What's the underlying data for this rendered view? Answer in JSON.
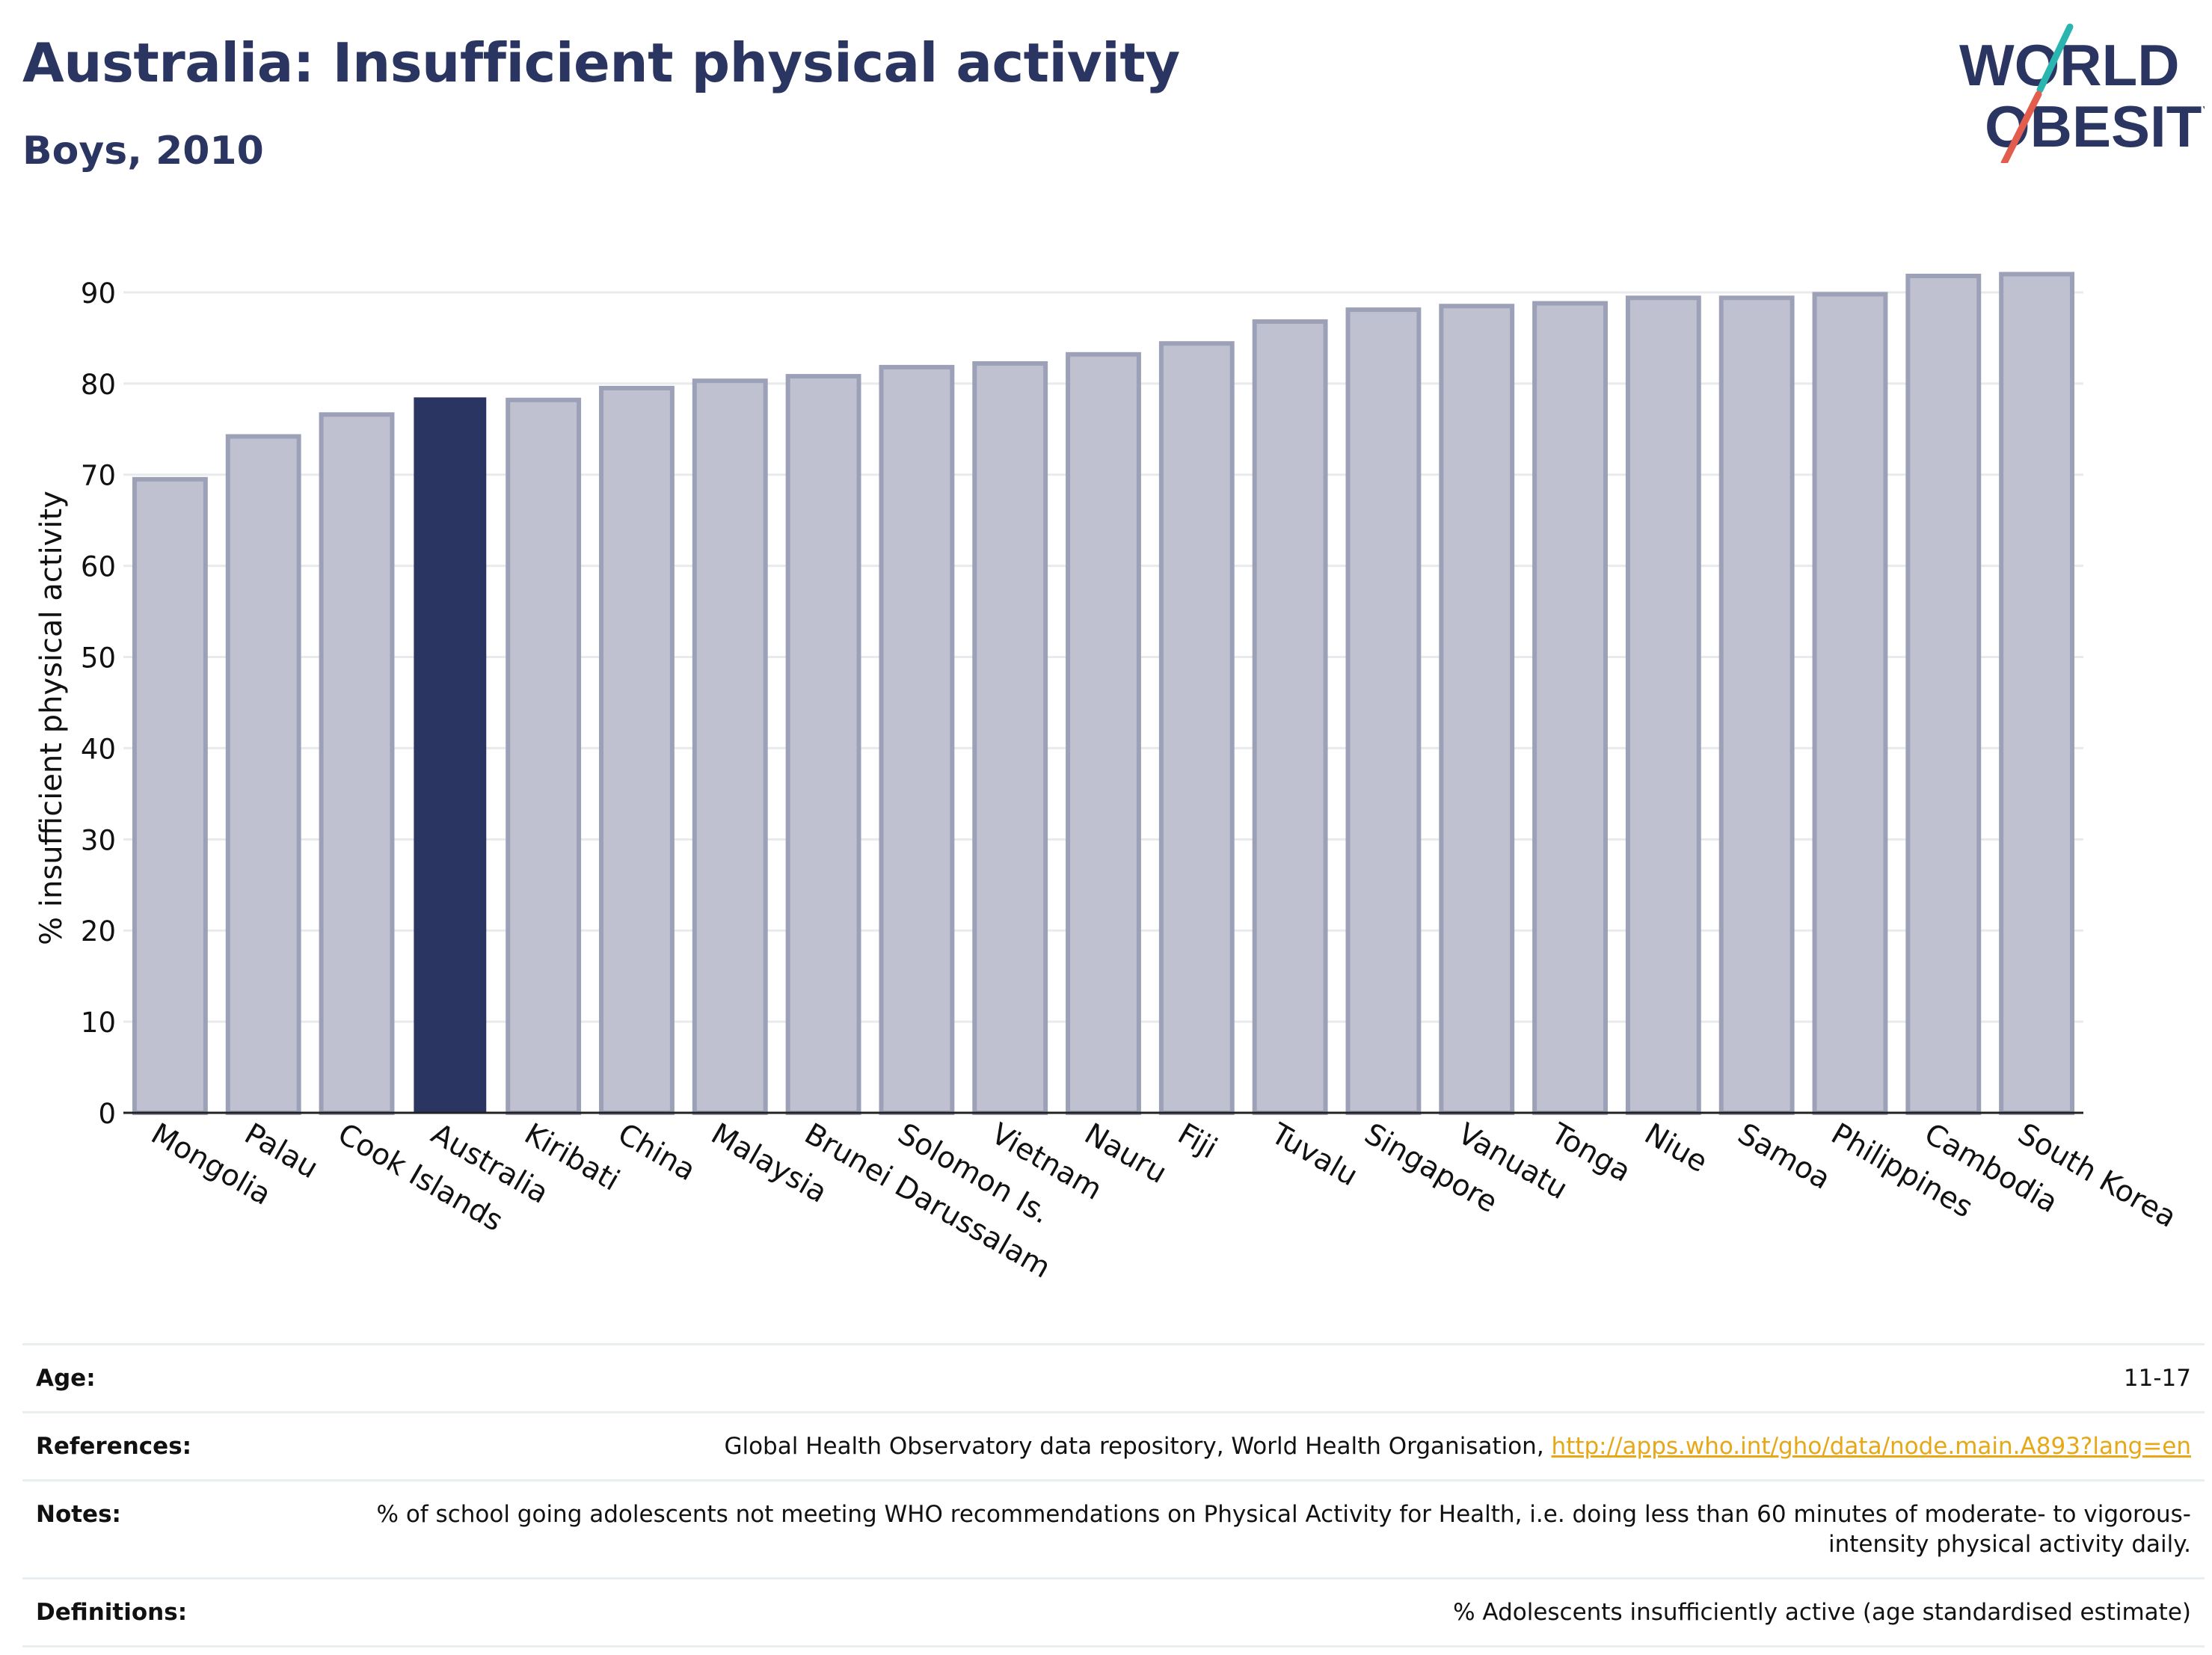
{
  "header": {
    "title": "Australia: Insufficient physical activity",
    "subtitle": "Boys, 2010"
  },
  "logo": {
    "line1": "WORLD",
    "line2": "OBESITY"
  },
  "colors": {
    "title": "#2b3561",
    "highlight_bar": "#2b3561",
    "bar_fill": "#bfc1d0",
    "bar_stroke": "#9da1b8",
    "logo_teal": "#2bb5b0",
    "logo_red": "#e35d4e",
    "link": "#e6a817"
  },
  "chart_data": {
    "type": "bar",
    "ylabel": "% insufficient physical activity",
    "ylim": [
      0,
      95
    ],
    "yticks": [
      0,
      10,
      20,
      30,
      40,
      50,
      60,
      70,
      80,
      90
    ],
    "grid": true,
    "highlight": "Australia",
    "categories": [
      "Mongolia",
      "Palau",
      "Cook Islands",
      "Australia",
      "Kiribati",
      "China",
      "Malaysia",
      "Brunei Darussalam",
      "Solomon Is.",
      "Vietnam",
      "Nauru",
      "Fiji",
      "Tuvalu",
      "Singapore",
      "Vanuatu",
      "Tonga",
      "Niue",
      "Samoa",
      "Philippines",
      "Cambodia",
      "South Korea"
    ],
    "values": [
      69.5,
      74.2,
      76.6,
      78.4,
      78.2,
      79.5,
      80.3,
      80.8,
      81.8,
      82.2,
      83.2,
      84.4,
      86.8,
      88.1,
      88.5,
      88.8,
      89.4,
      89.4,
      89.8,
      91.8,
      92.0
    ]
  },
  "meta": {
    "age_label": "Age:",
    "age_value": "11-17",
    "references_label": "References:",
    "references_text": "Global Health Observatory data repository, World Health Organisation, ",
    "references_link": "http://apps.who.int/gho/data/node.main.A893?lang=en",
    "notes_label": "Notes:",
    "notes_value": "% of school going adolescents not meeting WHO recommendations on Physical Activity for Health, i.e. doing less than 60 minutes of moderate- to vigorous-intensity physical activity daily.",
    "definitions_label": "Definitions:",
    "definitions_value": "% Adolescents insufficiently active (age standardised estimate)"
  }
}
